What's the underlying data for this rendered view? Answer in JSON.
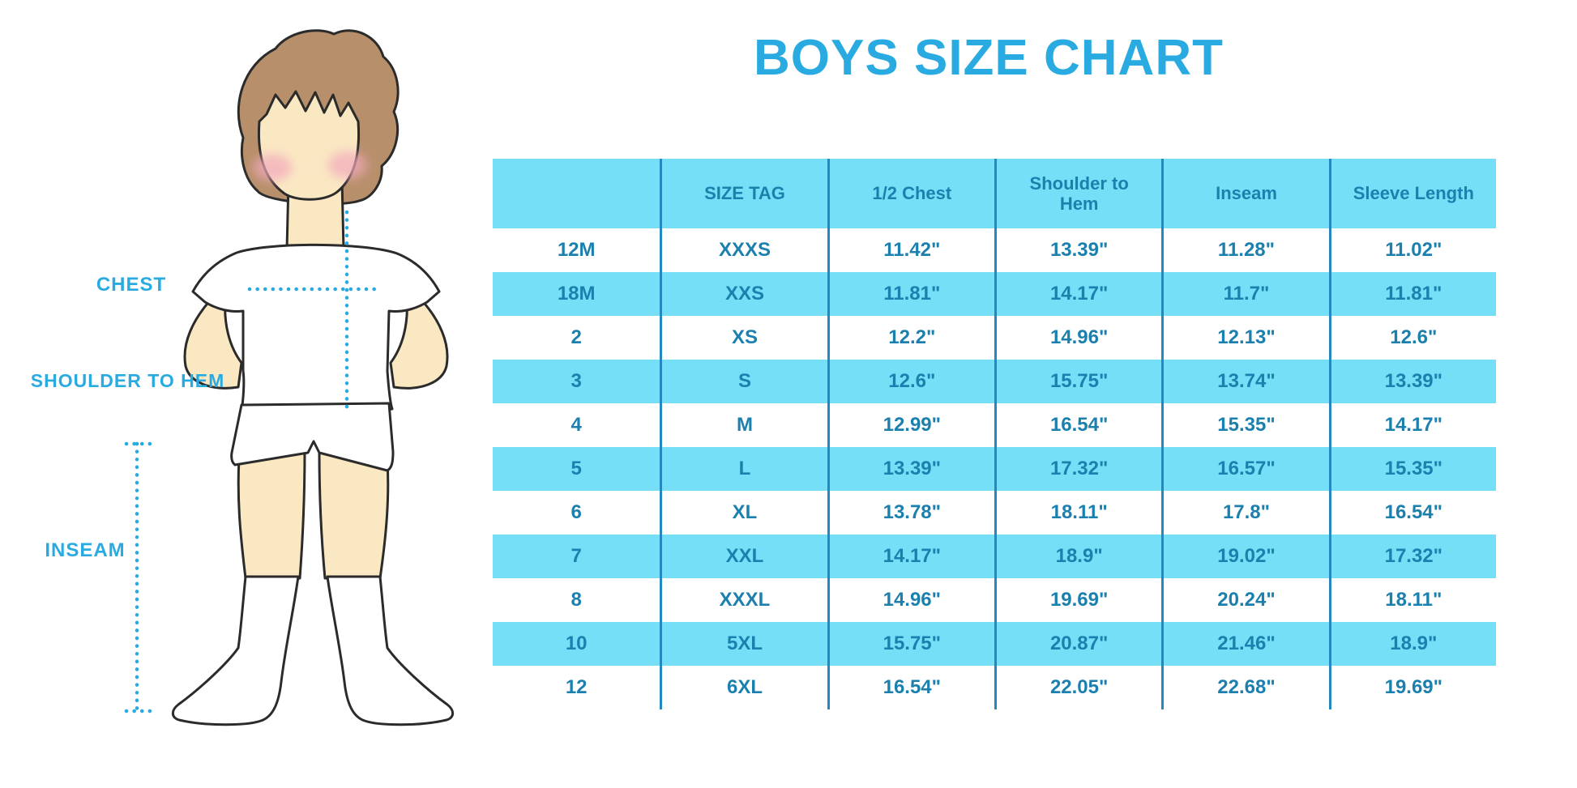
{
  "title": "BOYS SIZE CHART",
  "figure": {
    "labels": {
      "chest": "CHEST",
      "shoulder_to_hem": "SHOULDER TO HEM",
      "inseam": "INSEAM"
    }
  },
  "chart_data": {
    "type": "table",
    "title": "BOYS SIZE CHART",
    "columns": [
      "",
      "SIZE TAG",
      "1/2 Chest",
      "Shoulder to Hem",
      "Inseam",
      "Sleeve Length"
    ],
    "rows": [
      [
        "12M",
        "XXXS",
        "11.42\"",
        "13.39\"",
        "11.28\"",
        "11.02\""
      ],
      [
        "18M",
        "XXS",
        "11.81\"",
        "14.17\"",
        "11.7\"",
        "11.81\""
      ],
      [
        "2",
        "XS",
        "12.2\"",
        "14.96\"",
        "12.13\"",
        "12.6\""
      ],
      [
        "3",
        "S",
        "12.6\"",
        "15.75\"",
        "13.74\"",
        "13.39\""
      ],
      [
        "4",
        "M",
        "12.99\"",
        "16.54\"",
        "15.35\"",
        "14.17\""
      ],
      [
        "5",
        "L",
        "13.39\"",
        "17.32\"",
        "16.57\"",
        "15.35\""
      ],
      [
        "6",
        "XL",
        "13.78\"",
        "18.11\"",
        "17.8\"",
        "16.54\""
      ],
      [
        "7",
        "XXL",
        "14.17\"",
        "18.9\"",
        "19.02\"",
        "17.32\""
      ],
      [
        "8",
        "XXXL",
        "14.96\"",
        "19.69\"",
        "20.24\"",
        "18.11\""
      ],
      [
        "10",
        "5XL",
        "15.75\"",
        "20.87\"",
        "21.46\"",
        "18.9\""
      ],
      [
        "12",
        "6XL",
        "16.54\"",
        "22.05\"",
        "22.68\"",
        "19.69\""
      ]
    ]
  },
  "colors": {
    "accent_blue": "#29ABE2",
    "table_row_cyan": "#74DFF6",
    "table_text_blue": "#1C80AE",
    "table_divider_blue": "#2389C0",
    "skin": "#FAE8C3",
    "hair_brown": "#B7906B",
    "cheek_pink": "#F2A9BC",
    "outline": "#2B2B2B"
  }
}
